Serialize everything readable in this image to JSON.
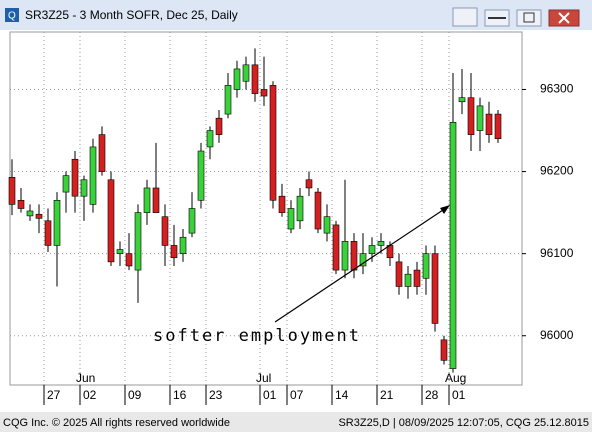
{
  "window": {
    "title": "SR3Z25 - 3 Month SOFR, Dec 25, Daily",
    "footer_left": "CQG Inc. © 2025 All rights reserved worldwide",
    "footer_right": "SR3Z25,D | 08/09/2025 12:07:05, CQG 25.12.8015"
  },
  "chart_data": {
    "type": "candlestick",
    "categories": [
      null,
      null,
      null,
      null,
      "27",
      null,
      null,
      null,
      "02",
      null,
      null,
      null,
      null,
      "09",
      null,
      null,
      null,
      null,
      "16",
      null,
      null,
      null,
      "23",
      null,
      null,
      null,
      null,
      null,
      "01",
      null,
      null,
      "07",
      null,
      null,
      null,
      null,
      "14",
      null,
      null,
      null,
      null,
      "21",
      null,
      null,
      null,
      null,
      "28",
      null,
      null,
      "01",
      null,
      null,
      null,
      null,
      null
    ],
    "x_group_labels": [
      "Jun",
      "Jul",
      "Aug"
    ],
    "open": [
      96193,
      96165,
      96146,
      96148,
      96140,
      96110,
      96175,
      96215,
      96170,
      96160,
      96245,
      96190,
      96100,
      96100,
      96080,
      96150,
      96180,
      96145,
      96110,
      96100,
      96125,
      96165,
      96230,
      96265,
      96270,
      96300,
      96310,
      96330,
      96300,
      96305,
      96170,
      96130,
      96140,
      96190,
      96175,
      96125,
      96135,
      96080,
      96115,
      96085,
      96100,
      96110,
      96110,
      96090,
      96060,
      96080,
      96070,
      96100,
      95995,
      95960,
      96285,
      96290,
      96250,
      96270,
      96270
    ],
    "high": [
      96215,
      96180,
      96160,
      96160,
      96155,
      96175,
      96200,
      96225,
      96195,
      96240,
      96255,
      96200,
      96115,
      96125,
      96160,
      96190,
      96235,
      96160,
      96135,
      96130,
      96175,
      96235,
      96255,
      96275,
      96320,
      96335,
      96340,
      96350,
      96340,
      96310,
      96185,
      96165,
      96180,
      96200,
      96180,
      96160,
      96140,
      96190,
      96125,
      96125,
      96120,
      96125,
      96115,
      96100,
      96085,
      96090,
      96110,
      96110,
      96000,
      96320,
      96325,
      96320,
      96290,
      96285,
      96275
    ],
    "low": [
      96147,
      96150,
      96140,
      96125,
      96102,
      96060,
      96150,
      96150,
      96140,
      96150,
      96195,
      96085,
      96085,
      96080,
      96040,
      96135,
      96150,
      96085,
      96085,
      96090,
      96120,
      96155,
      96215,
      96235,
      96265,
      96290,
      96300,
      96285,
      96280,
      96155,
      96145,
      96125,
      96130,
      96170,
      96125,
      96115,
      96075,
      96070,
      96070,
      96075,
      96090,
      96100,
      96085,
      96050,
      96045,
      96050,
      96050,
      96005,
      95965,
      95955,
      96270,
      96225,
      96225,
      96235,
      96235
    ],
    "close": [
      96160,
      96155,
      96152,
      96143,
      96110,
      96165,
      96195,
      96170,
      96190,
      96230,
      96200,
      96090,
      96105,
      96085,
      96150,
      96180,
      96150,
      96110,
      96095,
      96120,
      96155,
      96225,
      96250,
      96245,
      96305,
      96325,
      96330,
      96295,
      96292,
      96165,
      96150,
      96155,
      96170,
      96180,
      96130,
      96145,
      96080,
      96115,
      96080,
      96100,
      96110,
      96115,
      96095,
      96060,
      96075,
      96060,
      96100,
      96015,
      95970,
      96260,
      96290,
      96245,
      96280,
      96245,
      96240
    ],
    "up_color": "#3ad13a",
    "down_color": "#d42020",
    "ylim": [
      95940,
      96370
    ],
    "yticks": [
      96000,
      96100,
      96200,
      96300
    ],
    "grid": true,
    "annotation": "softer employment"
  }
}
